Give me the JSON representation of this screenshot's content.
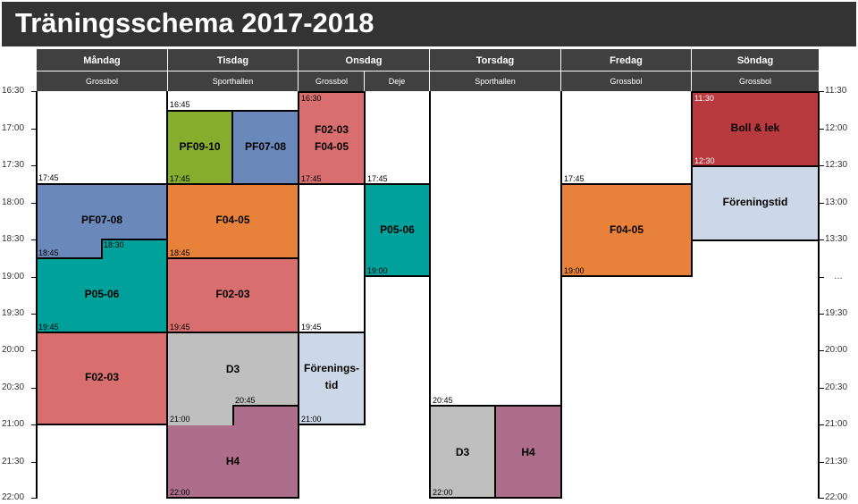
{
  "title": "Träningsschema 2017-2018",
  "days": [
    {
      "name": "Måndag",
      "location": "Grossbol"
    },
    {
      "name": "Tisdag",
      "location": "Sporthallen"
    },
    {
      "name": "Onsdag",
      "locations": [
        "Grossbol",
        "Deje"
      ]
    },
    {
      "name": "Torsdag",
      "location": "Sporthallen"
    },
    {
      "name": "Fredag",
      "location": "Grossbol"
    },
    {
      "name": "Söndag",
      "location": "Grossbol"
    }
  ],
  "time_axis_left": [
    "16:30",
    "17:00",
    "17:30",
    "18:00",
    "18:30",
    "19:00",
    "19:30",
    "20:00",
    "20:30",
    "21:00",
    "21:30",
    "22:00"
  ],
  "time_axis_right": [
    "11:30",
    "12:00",
    "12:30",
    "13:00",
    "13:30",
    "…",
    "19:30",
    "20:00",
    "20:30",
    "21:00",
    "21:30",
    "22:00"
  ],
  "sessions": {
    "mon_pf0708": {
      "label": "PF07-08",
      "end": "18:45",
      "end2": "18:30"
    },
    "mon_p0506": {
      "label": "P05-06",
      "end": "19:45"
    },
    "mon_f0203": {
      "label": "F02-03"
    },
    "mon_start": "17:45",
    "tue_start": "16:45",
    "tue_pf0910": {
      "label": "PF09-10",
      "end": "17:45"
    },
    "tue_pf0708": {
      "label": "PF07-08"
    },
    "tue_f0405": {
      "label": "F04-05",
      "end": "18:45"
    },
    "tue_f0203": {
      "label": "F02-03",
      "end": "19:45"
    },
    "tue_d3": {
      "label": "D3",
      "end": "21:00",
      "end2": "20:45"
    },
    "tue_h4": {
      "label": "H4",
      "end": "22:00"
    },
    "wed_gb_start": "16:30",
    "wed_gb_f0203": {
      "label": "F02-03\nF04-05",
      "end": "17:45"
    },
    "wed_gb_ftid": {
      "label": "Förenings-\ntid",
      "start": "19:45",
      "end": "21:00"
    },
    "wed_dj_p0506": {
      "label": "P05-06",
      "start": "17:45",
      "end": "19:00"
    },
    "thu_start": "20:45",
    "thu_d3": {
      "label": "D3",
      "end": "22:00"
    },
    "thu_h4": {
      "label": "H4"
    },
    "fri_f0405": {
      "label": "F04-05",
      "start": "17:45",
      "end": "19:00"
    },
    "sun_boll": {
      "label": "Boll & lek",
      "start": "11:30",
      "end": "12:30"
    },
    "sun_ftid": {
      "label": "Föreningstid"
    }
  },
  "colors": {
    "header": "#404040",
    "title_bar": "#333333",
    "blue": "#6b88bb",
    "green": "#86ad2e",
    "teal": "#00a19a",
    "orange": "#e8823a",
    "salmon": "#d96e6e",
    "gray": "#bfbfbf",
    "purple": "#ac6e8b",
    "red": "#b93a3e",
    "lightblue": "#ccd8e8"
  }
}
